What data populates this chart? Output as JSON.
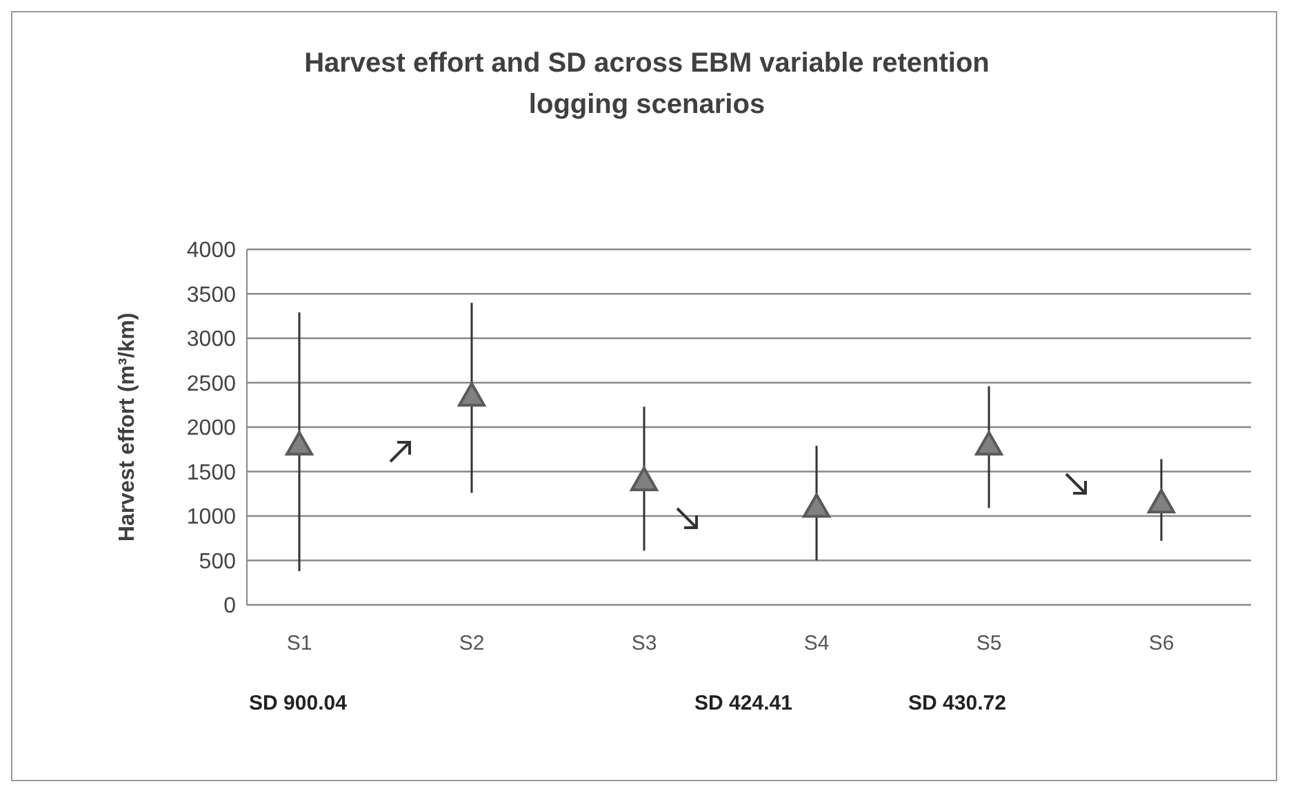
{
  "chart_data": {
    "type": "scatter",
    "title": "Harvest effort and SD across EBM variable retention logging scenarios",
    "ylabel": "Harvest effort (m³/km)",
    "categories": [
      "S1",
      "S2",
      "S3",
      "S4",
      "S5",
      "S6"
    ],
    "series": [
      {
        "color": "#808080",
        "values": [
          1800,
          2350,
          1400,
          1100,
          1800,
          1150
        ],
        "errors": [
          [
            380,
            3290
          ],
          [
            1260,
            3400
          ],
          [
            610,
            2230
          ],
          [
            500,
            1790
          ],
          [
            1090,
            2460
          ],
          [
            720,
            1640
          ]
        ]
      }
    ],
    "ylim": [
      0,
      4000
    ],
    "yticks": [
      0,
      500,
      1000,
      1500,
      2000,
      2500,
      3000,
      3500,
      4000
    ],
    "grid": "y",
    "marker": "triangle",
    "annotations": [
      "SD 900.04",
      "SD 424.41",
      "SD 430.72"
    ]
  }
}
